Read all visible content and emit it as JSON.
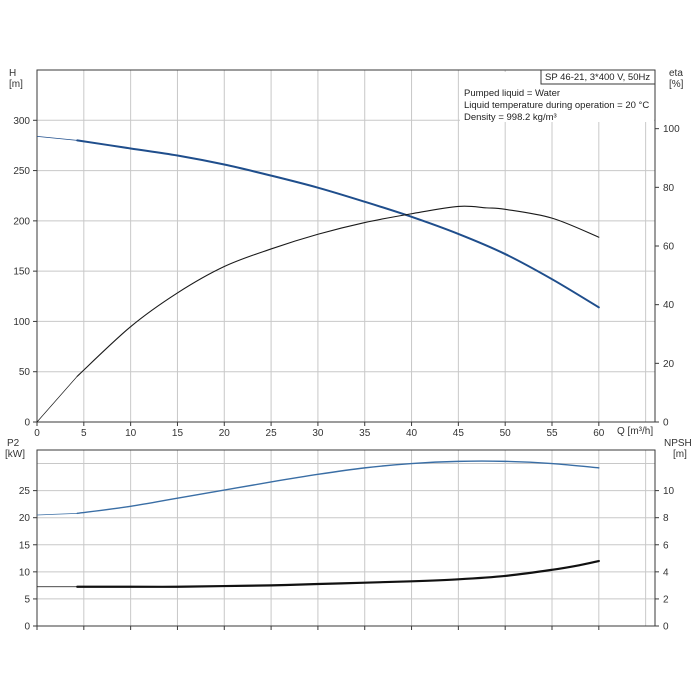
{
  "colors": {
    "head_curve": "#1f4e8c",
    "eff_curve": "#1a1a1a",
    "power_curve": "#3a6ea5",
    "npsh_curve": "#111111",
    "grid": "#c8c8c8",
    "axis": "#3a3a3a"
  },
  "info_box": {
    "model": "SP 46-21, 3*400 V, 50Hz",
    "line1": "Pumped liquid = Water",
    "line2": "Liquid temperature during operation = 20 °C",
    "line3": "Density = 998.2 kg/m³"
  },
  "chart_data": [
    {
      "type": "line",
      "xlabel": "Q [m³/h]",
      "ylabel": "H\n[m]",
      "y2label": "eta\n[%]",
      "x_ticks": [
        "0",
        "5",
        "10",
        "15",
        "20",
        "25",
        "30",
        "35",
        "40",
        "45",
        "50",
        "55",
        "60"
      ],
      "y_ticks": [
        "0",
        "50",
        "100",
        "150",
        "200",
        "250",
        "300"
      ],
      "y2_ticks": [
        "0",
        "20",
        "40",
        "60",
        "80",
        "100"
      ],
      "xlim": [
        0,
        66
      ],
      "ylim": [
        0,
        350
      ],
      "y2lim": [
        0,
        120
      ],
      "grid": true,
      "series": [
        {
          "name": "H",
          "axis": "left",
          "x": [
            0,
            4.3,
            10,
            15,
            20,
            25,
            30,
            35,
            40,
            45,
            50,
            55,
            60
          ],
          "y": [
            284,
            280,
            272,
            265,
            256,
            245,
            233,
            219,
            204,
            187,
            167,
            142,
            114
          ]
        },
        {
          "name": "eta",
          "axis": "right",
          "x": [
            0,
            4.3,
            10,
            15,
            20,
            25,
            30,
            35,
            40,
            45,
            48,
            50,
            55,
            60
          ],
          "y": [
            0,
            15.6,
            32.5,
            44,
            53,
            59,
            64,
            68,
            71,
            73.5,
            73,
            72.5,
            69.5,
            63
          ]
        }
      ]
    },
    {
      "type": "line",
      "xlabel": "",
      "ylabel": "P2\n[kW]",
      "y2label": "NPSH\n[m]",
      "y_ticks": [
        "0",
        "5",
        "10",
        "15",
        "20",
        "25"
      ],
      "y2_ticks": [
        "0",
        "2",
        "4",
        "6",
        "8",
        "10"
      ],
      "xlim": [
        0,
        66
      ],
      "ylim": [
        0,
        32.5
      ],
      "y2lim": [
        0,
        13
      ],
      "grid": true,
      "series": [
        {
          "name": "P2",
          "axis": "left",
          "x": [
            0,
            4.3,
            10,
            15,
            20,
            25,
            30,
            35,
            40,
            45,
            50,
            55,
            60
          ],
          "y": [
            20.5,
            20.8,
            22.1,
            23.6,
            25.1,
            26.6,
            28.0,
            29.2,
            30.0,
            30.4,
            30.4,
            30.0,
            29.2
          ]
        },
        {
          "name": "NPSH",
          "axis": "right",
          "x": [
            0,
            4.3,
            10,
            15,
            20,
            25,
            30,
            35,
            40,
            45,
            50,
            55,
            58,
            60
          ],
          "y": [
            2.9,
            2.9,
            2.9,
            2.9,
            2.95,
            3.0,
            3.1,
            3.2,
            3.3,
            3.45,
            3.7,
            4.15,
            4.5,
            4.8
          ]
        }
      ]
    }
  ]
}
